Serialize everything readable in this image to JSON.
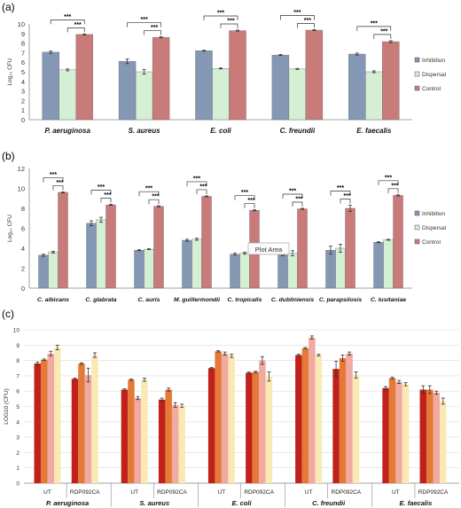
{
  "panels": [
    {
      "label": "(a)"
    },
    {
      "label": "(b)"
    },
    {
      "label": "(c)"
    }
  ],
  "tooltip": {
    "text": "Plot Area"
  },
  "chart_data": [
    {
      "type": "bar",
      "ylabel": "Log₁₀ CFU",
      "ylim": [
        0,
        10
      ],
      "yticks": [
        0,
        1,
        2,
        3,
        4,
        5,
        6,
        7,
        8,
        9,
        10
      ],
      "categories": [
        "P. aeruginosa",
        "S. aureus",
        "E. coli",
        "C. freundii",
        "E. faecalis"
      ],
      "series": [
        {
          "name": "Inhibition",
          "color": "#8497b4",
          "values": [
            7.05,
            6.1,
            7.2,
            6.75,
            6.85
          ],
          "errors": [
            0.12,
            0.25,
            0.05,
            0.06,
            0.1
          ]
        },
        {
          "name": "Dispersal",
          "color": "#d5efd5",
          "values": [
            5.2,
            5.0,
            5.35,
            5.3,
            5.0
          ],
          "errors": [
            0.1,
            0.25,
            0.05,
            0.05,
            0.1
          ]
        },
        {
          "name": "Control",
          "color": "#c97b7a",
          "values": [
            8.9,
            8.6,
            9.3,
            9.35,
            8.15
          ],
          "errors": [
            0.05,
            0.05,
            0.05,
            0.05,
            0.1
          ]
        }
      ],
      "significance": "***",
      "grid": false,
      "legend": "right"
    },
    {
      "type": "bar",
      "ylabel": "Log₁₀ CFU",
      "ylim": [
        0,
        12
      ],
      "yticks": [
        0,
        2,
        4,
        6,
        8,
        10,
        12
      ],
      "categories": [
        "C. albicans",
        "C. glabrata",
        "C. auris",
        "M. guillermondii",
        "C. tropicalis",
        "C. dubliniensis",
        "C. parapsilosis",
        "C. lusitaniae"
      ],
      "series": [
        {
          "name": "Inhibition",
          "color": "#8497b4",
          "values": [
            3.3,
            6.5,
            3.8,
            4.8,
            3.4,
            3.5,
            3.8,
            4.6
          ],
          "errors": [
            0.1,
            0.25,
            0.05,
            0.1,
            0.1,
            0.25,
            0.4,
            0.05
          ]
        },
        {
          "name": "Dispersal",
          "color": "#d5efd5",
          "values": [
            3.6,
            6.85,
            3.9,
            4.9,
            3.5,
            3.5,
            4.0,
            4.85
          ],
          "errors": [
            0.1,
            0.25,
            0.05,
            0.1,
            0.1,
            0.25,
            0.4,
            0.05
          ]
        },
        {
          "name": "Control",
          "color": "#c97b7a",
          "values": [
            9.6,
            8.35,
            8.2,
            9.2,
            7.8,
            7.95,
            8.0,
            9.3
          ],
          "errors": [
            0.05,
            0.05,
            0.05,
            0.05,
            0.05,
            0.05,
            0.3,
            0.05
          ]
        }
      ],
      "significance": "***",
      "grid": false,
      "legend": "right"
    },
    {
      "type": "bar",
      "ylabel": "LOG10 (CFU)",
      "ylim": [
        0,
        10
      ],
      "yticks": [
        0,
        1,
        2,
        3,
        4,
        5,
        6,
        7,
        8,
        9,
        10
      ],
      "grid": true,
      "categories": [
        "P. aeruginosa",
        "S. aureus",
        "E. coli",
        "C. freundii",
        "E. faecalis"
      ],
      "subgroups": [
        "UT",
        "RDP092CA"
      ],
      "bar_colors": [
        "#c0211a",
        "#e57a37",
        "#f2a9a2",
        "#fae9b5"
      ],
      "values": [
        [
          [
            7.8,
            8.05,
            8.45,
            8.85
          ],
          [
            6.8,
            7.8,
            7.05,
            8.35
          ]
        ],
        [
          [
            6.1,
            6.75,
            5.55,
            6.75
          ],
          [
            5.45,
            6.1,
            5.1,
            5.05
          ]
        ],
        [
          [
            7.5,
            8.6,
            8.45,
            8.3
          ],
          [
            7.2,
            7.25,
            8.0,
            6.95
          ]
        ],
        [
          [
            8.35,
            8.8,
            9.5,
            8.35
          ],
          [
            7.45,
            8.15,
            8.45,
            7.05
          ]
        ],
        [
          [
            6.2,
            6.85,
            6.6,
            6.45
          ],
          [
            6.1,
            6.1,
            5.9,
            5.35
          ]
        ]
      ],
      "errors": [
        [
          [
            0.1,
            0.05,
            0.15,
            0.15
          ],
          [
            0.05,
            0.05,
            0.45,
            0.15
          ]
        ],
        [
          [
            0.05,
            0.05,
            0.1,
            0.1
          ],
          [
            0.1,
            0.1,
            0.15,
            0.1
          ]
        ],
        [
          [
            0.05,
            0.05,
            0.1,
            0.1
          ],
          [
            0.05,
            0.05,
            0.25,
            0.3
          ]
        ],
        [
          [
            0.05,
            0.05,
            0.1,
            0.05
          ],
          [
            0.5,
            0.2,
            0.1,
            0.2
          ]
        ],
        [
          [
            0.1,
            0.05,
            0.1,
            0.1
          ],
          [
            0.25,
            0.25,
            0.1,
            0.2
          ]
        ]
      ]
    }
  ]
}
